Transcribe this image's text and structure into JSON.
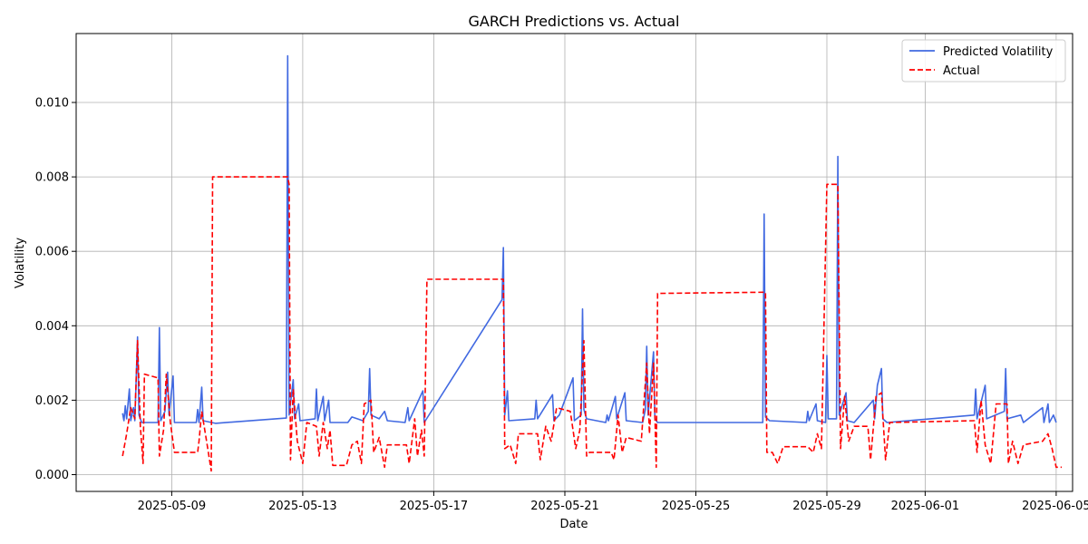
{
  "chart_data": {
    "type": "line",
    "title": "GARCH Predictions vs. Actual",
    "xlabel": "Date",
    "ylabel": "Volatility",
    "xlim": [
      "2025-05-06T02:00",
      "2025-06-05T12:00"
    ],
    "ylim": [
      -0.00045,
      0.01185
    ],
    "x_ticks": [
      "2025-05-09",
      "2025-05-13",
      "2025-05-17",
      "2025-05-21",
      "2025-05-25",
      "2025-05-29",
      "2025-06-01",
      "2025-06-05"
    ],
    "y_ticks": [
      0.0,
      0.002,
      0.004,
      0.006,
      0.008,
      0.01
    ],
    "grid": true,
    "legend_position": "top-right",
    "series": [
      {
        "name": "Predicted Volatility",
        "color": "#4169e1",
        "style": "solid",
        "points": [
          [
            "2025-05-07T12:00",
            0.00165
          ],
          [
            "2025-05-07T13:00",
            0.00145
          ],
          [
            "2025-05-07T14:00",
            0.00185
          ],
          [
            "2025-05-07T15:00",
            0.0015
          ],
          [
            "2025-05-07T17:00",
            0.0023
          ],
          [
            "2025-05-07T18:00",
            0.00145
          ],
          [
            "2025-05-07T20:00",
            0.0018
          ],
          [
            "2025-05-07T21:00",
            0.00145
          ],
          [
            "2025-05-07T23:00",
            0.0037
          ],
          [
            "2025-05-08T00:00",
            0.0016
          ],
          [
            "2025-05-08T02:00",
            0.0014
          ],
          [
            "2025-05-08T14:00",
            0.0014
          ],
          [
            "2025-05-08T15:00",
            0.00395
          ],
          [
            "2025-05-08T16:00",
            0.00145
          ],
          [
            "2025-05-08T19:00",
            0.0017
          ],
          [
            "2025-05-08T21:00",
            0.00275
          ],
          [
            "2025-05-08T22:00",
            0.0016
          ],
          [
            "2025-05-09T01:00",
            0.00265
          ],
          [
            "2025-05-09T02:00",
            0.0014
          ],
          [
            "2025-05-09T18:00",
            0.0014
          ],
          [
            "2025-05-09T19:00",
            0.00175
          ],
          [
            "2025-05-09T20:00",
            0.0014
          ],
          [
            "2025-05-09T22:00",
            0.00235
          ],
          [
            "2025-05-09T23:00",
            0.00145
          ],
          [
            "2025-05-10T08:00",
            0.00138
          ],
          [
            "2025-05-12T12:00",
            0.00152
          ],
          [
            "2025-05-12T13:00",
            0.01125
          ],
          [
            "2025-05-12T14:00",
            0.0016
          ],
          [
            "2025-05-12T17:00",
            0.00255
          ],
          [
            "2025-05-12T18:00",
            0.0015
          ],
          [
            "2025-05-12T21:00",
            0.0019
          ],
          [
            "2025-05-12T22:00",
            0.00145
          ],
          [
            "2025-05-13T09:00",
            0.0015
          ],
          [
            "2025-05-13T10:00",
            0.0023
          ],
          [
            "2025-05-13T11:00",
            0.00145
          ],
          [
            "2025-05-13T15:00",
            0.0021
          ],
          [
            "2025-05-13T16:00",
            0.00145
          ],
          [
            "2025-05-13T19:00",
            0.002
          ],
          [
            "2025-05-13T20:00",
            0.0014
          ],
          [
            "2025-05-14T09:00",
            0.0014
          ],
          [
            "2025-05-14T12:00",
            0.00155
          ],
          [
            "2025-05-14T16:00",
            0.0015
          ],
          [
            "2025-05-14T20:00",
            0.00145
          ],
          [
            "2025-05-15T00:00",
            0.0017
          ],
          [
            "2025-05-15T01:00",
            0.00285
          ],
          [
            "2025-05-15T02:00",
            0.0016
          ],
          [
            "2025-05-15T08:00",
            0.0015
          ],
          [
            "2025-05-15T12:00",
            0.0017
          ],
          [
            "2025-05-15T14:00",
            0.00145
          ],
          [
            "2025-05-16T03:00",
            0.0014
          ],
          [
            "2025-05-16T05:00",
            0.0018
          ],
          [
            "2025-05-16T06:00",
            0.00145
          ],
          [
            "2025-05-16T16:00",
            0.00225
          ],
          [
            "2025-05-16T17:00",
            0.0014
          ],
          [
            "2025-05-19T02:00",
            0.0047
          ],
          [
            "2025-05-19T03:00",
            0.0061
          ],
          [
            "2025-05-19T04:00",
            0.0016
          ],
          [
            "2025-05-19T06:00",
            0.00225
          ],
          [
            "2025-05-19T07:00",
            0.00145
          ],
          [
            "2025-05-20T02:00",
            0.0015
          ],
          [
            "2025-05-20T03:00",
            0.002
          ],
          [
            "2025-05-20T04:00",
            0.0015
          ],
          [
            "2025-05-20T15:00",
            0.00215
          ],
          [
            "2025-05-20T16:00",
            0.00145
          ],
          [
            "2025-05-20T20:00",
            0.0016
          ],
          [
            "2025-05-21T06:00",
            0.0026
          ],
          [
            "2025-05-21T07:00",
            0.00145
          ],
          [
            "2025-05-21T12:00",
            0.0016
          ],
          [
            "2025-05-21T13:00",
            0.00445
          ],
          [
            "2025-05-21T14:00",
            0.00175
          ],
          [
            "2025-05-21T16:00",
            0.0015
          ],
          [
            "2025-05-22T06:00",
            0.0014
          ],
          [
            "2025-05-22T07:00",
            0.0016
          ],
          [
            "2025-05-22T08:00",
            0.00145
          ],
          [
            "2025-05-22T13:00",
            0.0021
          ],
          [
            "2025-05-22T14:00",
            0.0015
          ],
          [
            "2025-05-22T20:00",
            0.0022
          ],
          [
            "2025-05-22T21:00",
            0.00145
          ],
          [
            "2025-05-23T09:00",
            0.0014
          ],
          [
            "2025-05-23T11:00",
            0.00175
          ],
          [
            "2025-05-23T12:00",
            0.00345
          ],
          [
            "2025-05-23T13:00",
            0.0016
          ],
          [
            "2025-05-23T17:00",
            0.0033
          ],
          [
            "2025-05-23T18:00",
            0.0015
          ],
          [
            "2025-05-23T20:00",
            0.0014
          ],
          [
            "2025-05-27T01:00",
            0.0014
          ],
          [
            "2025-05-27T02:00",
            0.007
          ],
          [
            "2025-05-27T03:00",
            0.00155
          ],
          [
            "2025-05-27T06:00",
            0.00145
          ],
          [
            "2025-05-28T09:00",
            0.0014
          ],
          [
            "2025-05-28T10:00",
            0.0017
          ],
          [
            "2025-05-28T11:00",
            0.00145
          ],
          [
            "2025-05-28T16:00",
            0.0019
          ],
          [
            "2025-05-28T17:00",
            0.00145
          ],
          [
            "2025-05-28T23:00",
            0.0014
          ],
          [
            "2025-05-29T00:00",
            0.0032
          ],
          [
            "2025-05-29T01:00",
            0.0015
          ],
          [
            "2025-05-29T07:00",
            0.0015
          ],
          [
            "2025-05-29T08:00",
            0.00855
          ],
          [
            "2025-05-29T09:00",
            0.0016
          ],
          [
            "2025-05-29T14:00",
            0.0022
          ],
          [
            "2025-05-29T15:00",
            0.00145
          ],
          [
            "2025-05-29T20:00",
            0.0014
          ],
          [
            "2025-05-30T10:00",
            0.002
          ],
          [
            "2025-05-30T11:00",
            0.0015
          ],
          [
            "2025-05-30T13:00",
            0.0024
          ],
          [
            "2025-05-30T16:00",
            0.00285
          ],
          [
            "2025-05-30T17:00",
            0.0015
          ],
          [
            "2025-05-30T20:00",
            0.0014
          ],
          [
            "2025-06-02T12:00",
            0.0016
          ],
          [
            "2025-06-02T13:00",
            0.0023
          ],
          [
            "2025-06-02T14:00",
            0.0015
          ],
          [
            "2025-06-02T20:00",
            0.0024
          ],
          [
            "2025-06-02T21:00",
            0.0015
          ],
          [
            "2025-06-03T10:00",
            0.0017
          ],
          [
            "2025-06-03T11:00",
            0.00285
          ],
          [
            "2025-06-03T12:00",
            0.0015
          ],
          [
            "2025-06-03T22:00",
            0.0016
          ],
          [
            "2025-06-04T00:00",
            0.0014
          ],
          [
            "2025-06-04T14:00",
            0.0018
          ],
          [
            "2025-06-04T15:00",
            0.0014
          ],
          [
            "2025-06-04T18:00",
            0.0019
          ],
          [
            "2025-06-04T19:00",
            0.0014
          ],
          [
            "2025-06-04T22:00",
            0.0016
          ],
          [
            "2025-06-05T00:00",
            0.0014
          ]
        ]
      },
      {
        "name": "Actual",
        "color": "#ff0000",
        "style": "dashed",
        "points": [
          [
            "2025-05-07T12:00",
            0.0005
          ],
          [
            "2025-05-07T15:00",
            0.0011
          ],
          [
            "2025-05-07T18:00",
            0.0018
          ],
          [
            "2025-05-07T21:00",
            0.0015
          ],
          [
            "2025-05-07T23:00",
            0.0036
          ],
          [
            "2025-05-08T01:00",
            0.0013
          ],
          [
            "2025-05-08T03:00",
            0.0003
          ],
          [
            "2025-05-08T04:00",
            0.0027
          ],
          [
            "2025-05-08T14:00",
            0.0026
          ],
          [
            "2025-05-08T15:00",
            0.0005
          ],
          [
            "2025-05-08T18:00",
            0.0012
          ],
          [
            "2025-05-08T20:00",
            0.0027
          ],
          [
            "2025-05-08T23:00",
            0.0014
          ],
          [
            "2025-05-09T02:00",
            0.0006
          ],
          [
            "2025-05-09T19:00",
            0.0006
          ],
          [
            "2025-05-09T20:00",
            0.0009
          ],
          [
            "2025-05-09T22:00",
            0.0017
          ],
          [
            "2025-05-10T02:00",
            0.0008
          ],
          [
            "2025-05-10T05:00",
            0.0001
          ],
          [
            "2025-05-10T06:00",
            0.008
          ],
          [
            "2025-05-12T13:00",
            0.008
          ],
          [
            "2025-05-12T14:00",
            0.0078
          ],
          [
            "2025-05-12T15:00",
            0.0004
          ],
          [
            "2025-05-12T17:00",
            0.0023
          ],
          [
            "2025-05-12T20:00",
            0.0009
          ],
          [
            "2025-05-13T00:00",
            0.0003
          ],
          [
            "2025-05-13T03:00",
            0.0014
          ],
          [
            "2025-05-13T10:00",
            0.0013
          ],
          [
            "2025-05-13T12:00",
            0.0005
          ],
          [
            "2025-05-13T15:00",
            0.0014
          ],
          [
            "2025-05-13T18:00",
            0.0007
          ],
          [
            "2025-05-13T20:00",
            0.0012
          ],
          [
            "2025-05-13T22:00",
            0.00025
          ],
          [
            "2025-05-14T08:00",
            0.00025
          ],
          [
            "2025-05-14T12:00",
            0.0008
          ],
          [
            "2025-05-14T16:00",
            0.0009
          ],
          [
            "2025-05-14T19:00",
            0.0003
          ],
          [
            "2025-05-14T21:00",
            0.0019
          ],
          [
            "2025-05-15T02:00",
            0.002
          ],
          [
            "2025-05-15T04:00",
            0.0006
          ],
          [
            "2025-05-15T08:00",
            0.001
          ],
          [
            "2025-05-15T12:00",
            0.0002
          ],
          [
            "2025-05-15T14:00",
            0.0008
          ],
          [
            "2025-05-16T04:00",
            0.0008
          ],
          [
            "2025-05-16T06:00",
            0.0003
          ],
          [
            "2025-05-16T10:00",
            0.0015
          ],
          [
            "2025-05-16T12:00",
            0.0005
          ],
          [
            "2025-05-16T15:00",
            0.0012
          ],
          [
            "2025-05-16T17:00",
            0.0005
          ],
          [
            "2025-05-16T19:00",
            0.00525
          ],
          [
            "2025-05-19T03:00",
            0.00525
          ],
          [
            "2025-05-19T04:00",
            0.0007
          ],
          [
            "2025-05-19T08:00",
            0.0008
          ],
          [
            "2025-05-19T12:00",
            0.0003
          ],
          [
            "2025-05-19T14:00",
            0.0011
          ],
          [
            "2025-05-20T04:00",
            0.0011
          ],
          [
            "2025-05-20T06:00",
            0.0004
          ],
          [
            "2025-05-20T10:00",
            0.0013
          ],
          [
            "2025-05-20T14:00",
            0.0009
          ],
          [
            "2025-05-20T18:00",
            0.0018
          ],
          [
            "2025-05-21T04:00",
            0.0017
          ],
          [
            "2025-05-21T08:00",
            0.0007
          ],
          [
            "2025-05-21T11:00",
            0.0012
          ],
          [
            "2025-05-21T14:00",
            0.0036
          ],
          [
            "2025-05-21T16:00",
            0.0005
          ],
          [
            "2025-05-21T18:00",
            0.0006
          ],
          [
            "2025-05-22T10:00",
            0.0006
          ],
          [
            "2025-05-22T12:00",
            0.0004
          ],
          [
            "2025-05-22T15:00",
            0.0016
          ],
          [
            "2025-05-22T18:00",
            0.0006
          ],
          [
            "2025-05-22T21:00",
            0.001
          ],
          [
            "2025-05-23T08:00",
            0.0009
          ],
          [
            "2025-05-23T12:00",
            0.003
          ],
          [
            "2025-05-23T14:00",
            0.0011
          ],
          [
            "2025-05-23T17:00",
            0.003
          ],
          [
            "2025-05-23T19:00",
            0.0002
          ],
          [
            "2025-05-23T20:00",
            0.00487
          ],
          [
            "2025-05-27T03:00",
            0.0049
          ],
          [
            "2025-05-27T04:00",
            0.0006
          ],
          [
            "2025-05-27T08:00",
            0.0006
          ],
          [
            "2025-05-27T12:00",
            0.0003
          ],
          [
            "2025-05-27T16:00",
            0.00075
          ],
          [
            "2025-05-28T10:00",
            0.00075
          ],
          [
            "2025-05-28T14:00",
            0.0006
          ],
          [
            "2025-05-28T17:00",
            0.0011
          ],
          [
            "2025-05-28T20:00",
            0.0007
          ],
          [
            "2025-05-29T00:00",
            0.0078
          ],
          [
            "2025-05-29T08:00",
            0.0078
          ],
          [
            "2025-05-29T10:00",
            0.0007
          ],
          [
            "2025-05-29T13:00",
            0.0021
          ],
          [
            "2025-05-29T16:00",
            0.0009
          ],
          [
            "2025-05-29T20:00",
            0.0013
          ],
          [
            "2025-05-30T06:00",
            0.0013
          ],
          [
            "2025-05-30T08:00",
            0.0004
          ],
          [
            "2025-05-30T12:00",
            0.0021
          ],
          [
            "2025-05-30T16:00",
            0.0022
          ],
          [
            "2025-05-30T19:00",
            0.0004
          ],
          [
            "2025-05-30T22:00",
            0.0014
          ],
          [
            "2025-06-02T12:00",
            0.00145
          ],
          [
            "2025-06-02T14:00",
            0.0006
          ],
          [
            "2025-06-02T17:00",
            0.002
          ],
          [
            "2025-06-02T20:00",
            0.0008
          ],
          [
            "2025-06-03T00:00",
            0.0003
          ],
          [
            "2025-06-03T04:00",
            0.0019
          ],
          [
            "2025-06-03T12:00",
            0.0019
          ],
          [
            "2025-06-03T13:00",
            0.0003
          ],
          [
            "2025-06-03T16:00",
            0.0009
          ],
          [
            "2025-06-03T20:00",
            0.0003
          ],
          [
            "2025-06-04T00:00",
            0.0008
          ],
          [
            "2025-06-04T14:00",
            0.0009
          ],
          [
            "2025-06-04T18:00",
            0.0011
          ],
          [
            "2025-06-04T21:00",
            0.0007
          ],
          [
            "2025-06-05T00:00",
            0.0002
          ],
          [
            "2025-06-05T04:00",
            0.0002
          ]
        ]
      }
    ]
  }
}
